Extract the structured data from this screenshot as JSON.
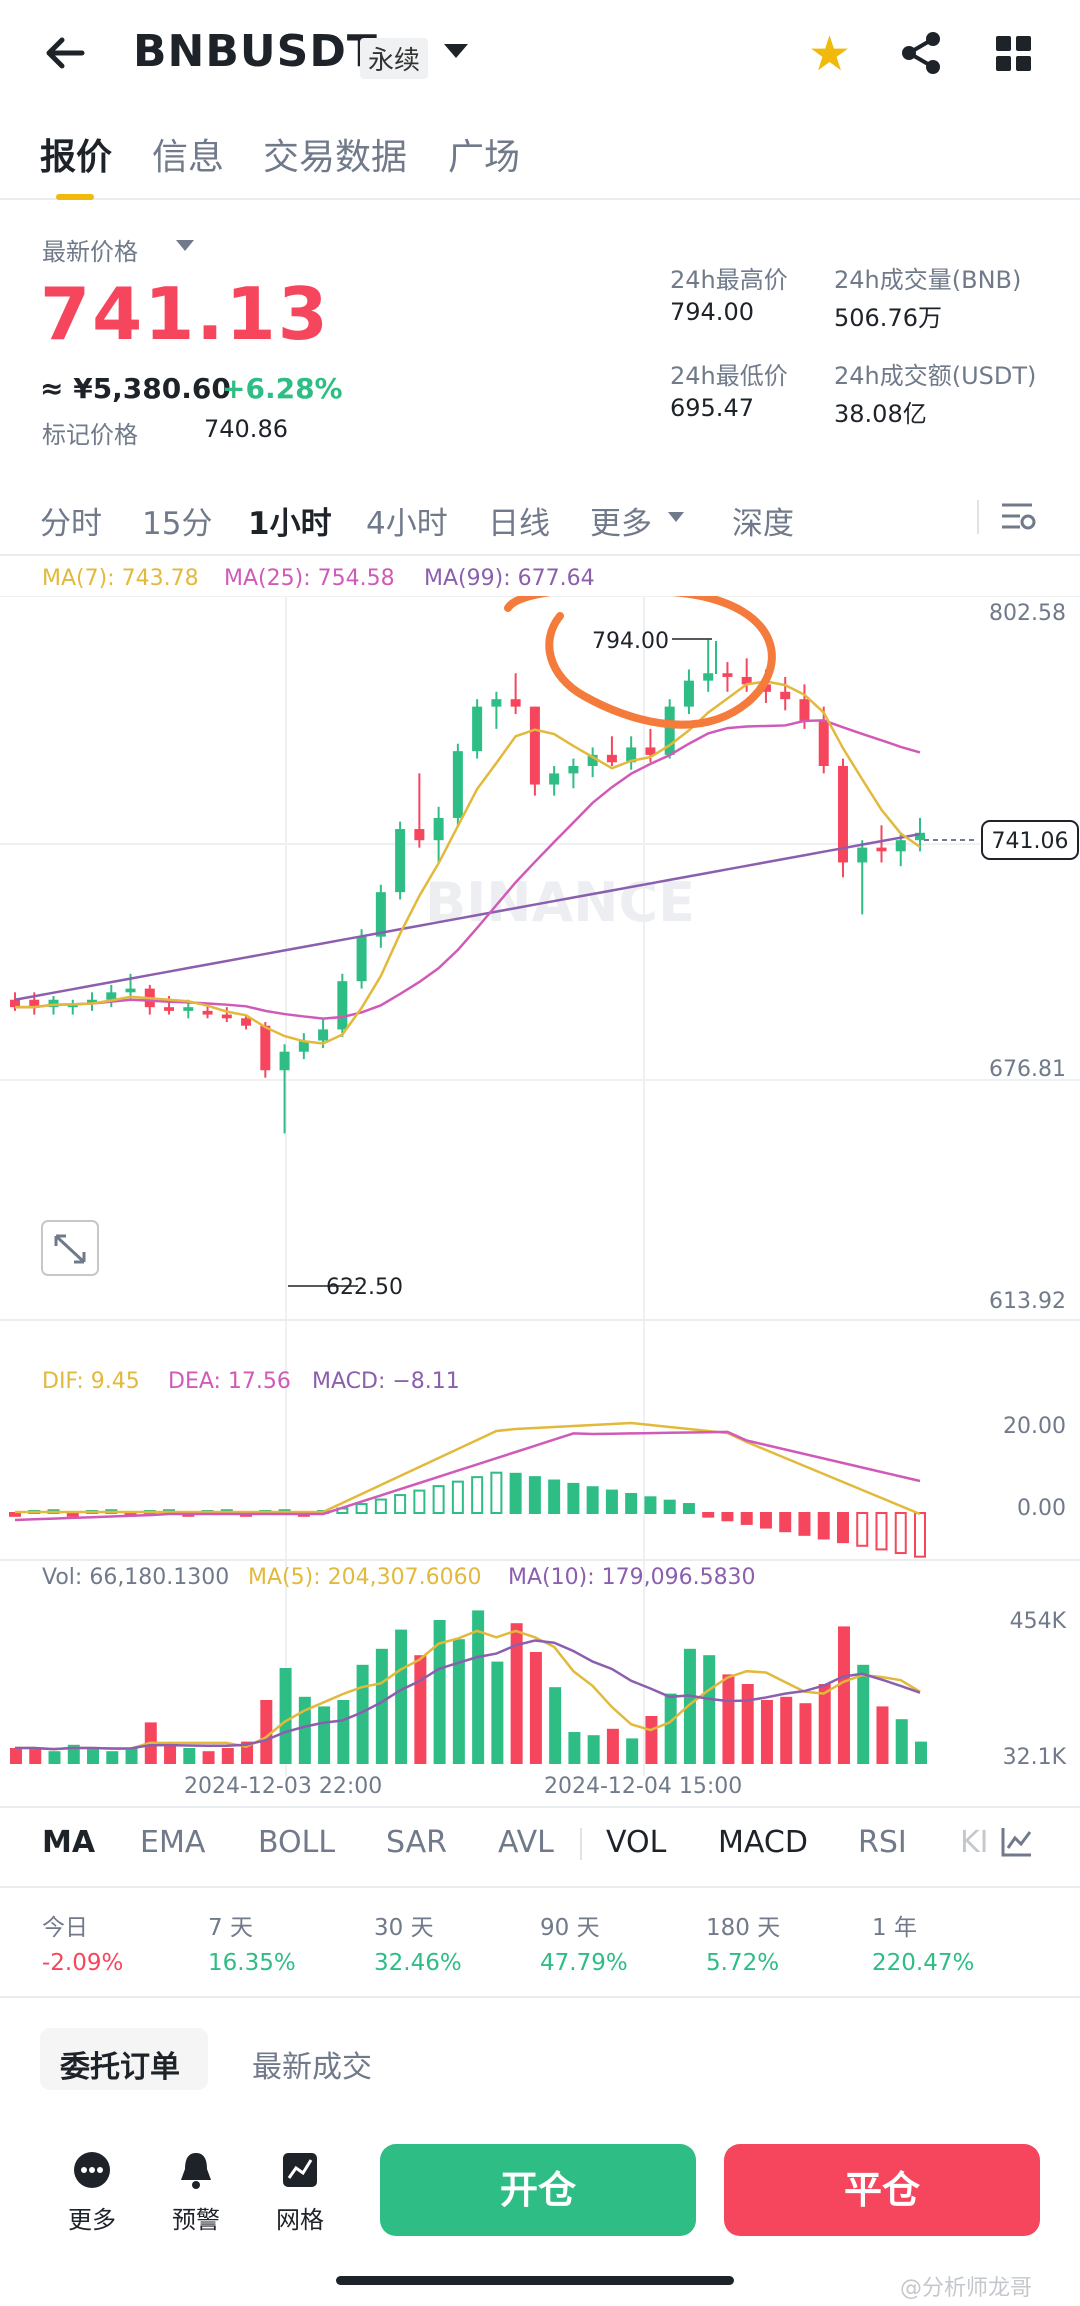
{
  "header": {
    "symbol": "BNBUSDT",
    "contract_type": "永续",
    "icons": [
      "back-arrow-icon",
      "chevron-down-icon",
      "star-icon",
      "share-icon",
      "grid-icon"
    ]
  },
  "tabs": [
    "报价",
    "信息",
    "交易数据",
    "广场"
  ],
  "price": {
    "last_label": "最新价格",
    "last": "741.13",
    "cny": "≈ ¥5,380.60",
    "change": "+6.28%",
    "mark_label": "标记价格",
    "mark": "740.86"
  },
  "stats": {
    "high_label": "24h最高价",
    "high": "794.00",
    "vol_bnb_label": "24h成交量(BNB)",
    "vol_bnb": "506.76万",
    "low_label": "24h最低价",
    "low": "695.47",
    "vol_usdt_label": "24h成交额(USDT)",
    "vol_usdt": "38.08亿"
  },
  "timeframes": [
    "分时",
    "15分",
    "1小时",
    "4小时",
    "日线",
    "更多",
    "深度"
  ],
  "chart": {
    "ma7": "MA(7): 743.78",
    "ma25": "MA(25): 754.58",
    "ma99": "MA(99): 677.64",
    "axis": [
      "802.58",
      "676.81",
      "613.92"
    ],
    "current": "741.06",
    "high_mark": "794.00",
    "low_mark": "622.50",
    "watermark": "BINANCE"
  },
  "macd": {
    "dif": "DIF: 9.45",
    "dea": "DEA: 17.56",
    "macd": "MACD: −8.11",
    "axis": [
      "20.00",
      "0.00"
    ]
  },
  "volume": {
    "vol": "Vol: 66,180.1300",
    "ma5": "MA(5): 204,307.6060",
    "ma10": "MA(10): 179,096.5830",
    "axis": [
      "454K",
      "32.1K"
    ],
    "dates": [
      "2024-12-03 22:00",
      "2024-12-04 15:00"
    ]
  },
  "indicators": [
    "MA",
    "EMA",
    "BOLL",
    "SAR",
    "AVL",
    "VOL",
    "MACD",
    "RSI",
    "KI"
  ],
  "performance": [
    {
      "label": "今日",
      "value": "-2.09%"
    },
    {
      "label": "7 天",
      "value": "16.35%"
    },
    {
      "label": "30 天",
      "value": "32.46%"
    },
    {
      "label": "90 天",
      "value": "47.79%"
    },
    {
      "label": "180 天",
      "value": "5.72%"
    },
    {
      "label": "1 年",
      "value": "220.47%"
    }
  ],
  "order_tabs": [
    "委托订单",
    "最新成交"
  ],
  "bottom": {
    "more": "更多",
    "alert": "预警",
    "grid": "网格",
    "open": "开仓",
    "close": "平仓"
  },
  "watermark_text": "@分析师龙哥",
  "colors": {
    "up": "#2ebd85",
    "down": "#f6465d",
    "accent": "#f0b90b",
    "ma7": "#e2b93b",
    "ma25": "#d05ab8",
    "ma99": "#8b5fae"
  },
  "chart_data": {
    "type": "candlestick",
    "interval": "1小时",
    "x_labels": [
      "2024-12-03 22:00",
      "2024-12-04 15:00"
    ],
    "high": 794.0,
    "low": 622.5,
    "current": 741.06,
    "ylim": [
      613.92,
      802.58
    ]
  }
}
